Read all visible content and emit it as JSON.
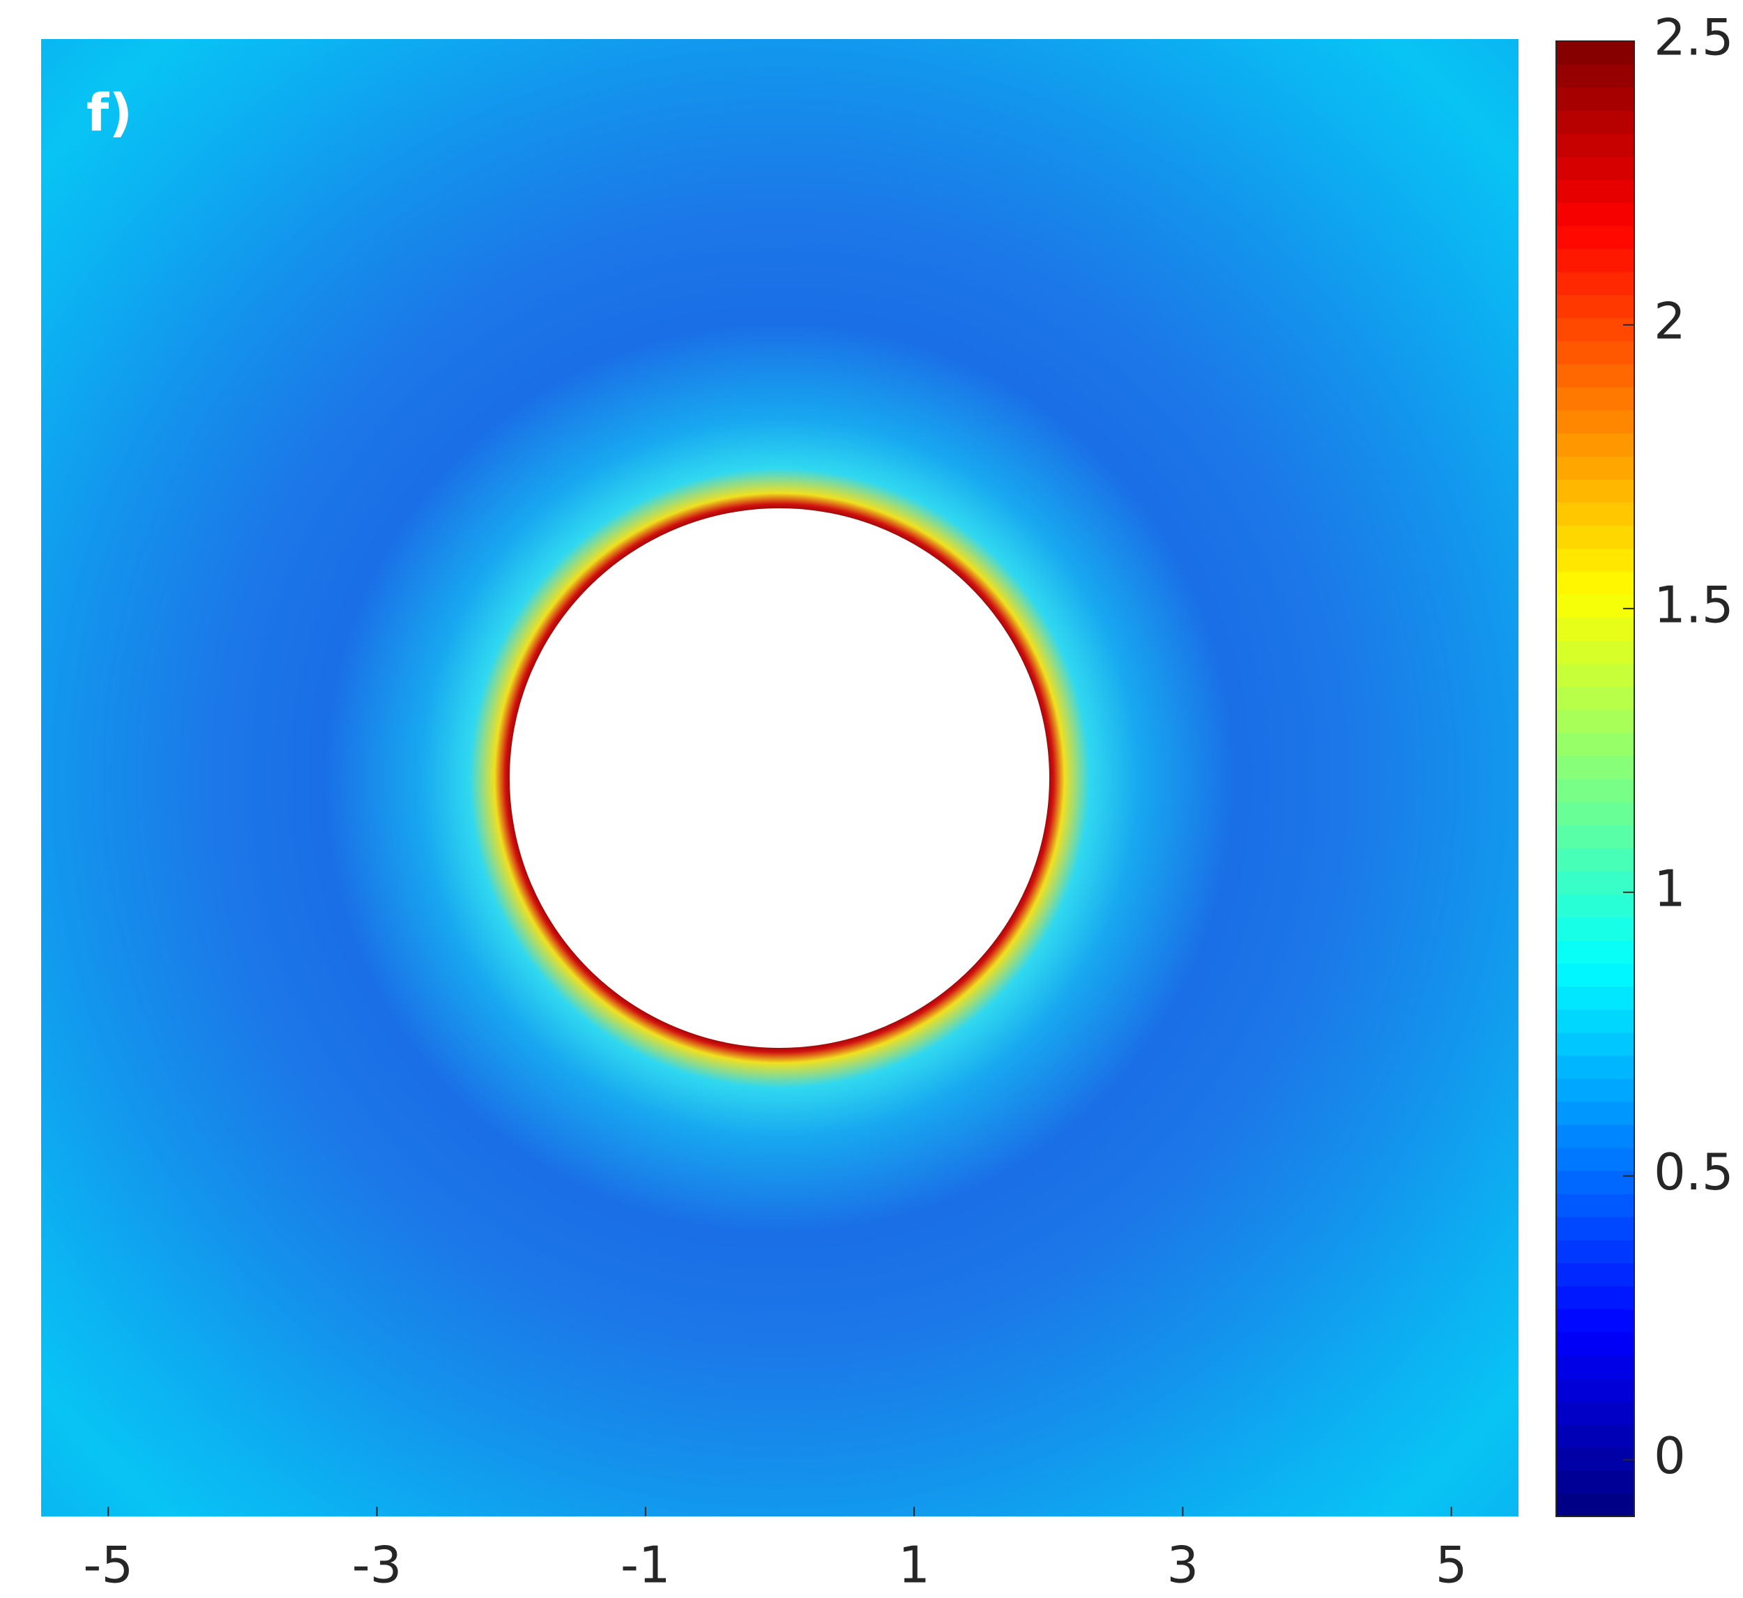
{
  "chart_data": {
    "type": "contour",
    "label": "f)",
    "xlim": [
      -5.5,
      5.5
    ],
    "xticks": [
      -5,
      -3,
      -1,
      1,
      3,
      5
    ],
    "colorbar": {
      "colormap": "jet",
      "lim": [
        -0.1,
        2.5
      ],
      "ticks": [
        0,
        0.5,
        1,
        1.5,
        2,
        2.5
      ]
    }
  }
}
